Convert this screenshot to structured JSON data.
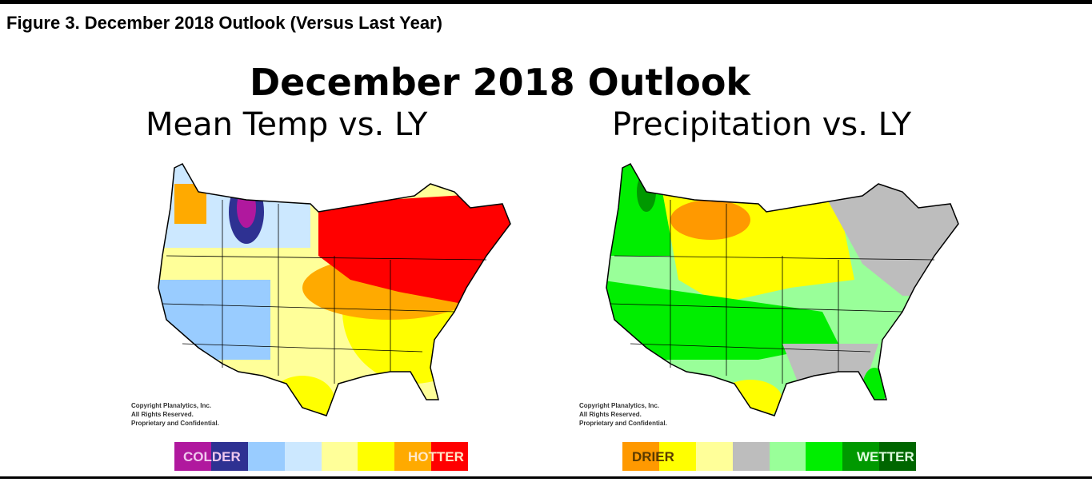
{
  "caption": "Figure 3. December 2018 Outlook (Versus Last Year)",
  "title": "December 2018 Outlook",
  "maps": [
    {
      "subtitle": "Mean Temp vs. LY",
      "legend_low": "COLDER",
      "legend_high": "HOTTER",
      "legend_colors": [
        "#b0189e",
        "#2e3192",
        "#99ccff",
        "#cce8ff",
        "#ffff99",
        "#ffff00",
        "#ffaa00",
        "#ff0000"
      ]
    },
    {
      "subtitle": "Precipitation vs. LY",
      "legend_low": "DRIER",
      "legend_high": "WETTER",
      "legend_colors": [
        "#ff9900",
        "#ffff00",
        "#ffff99",
        "#bdbdbd",
        "#99ff99",
        "#00ee00",
        "#009900",
        "#006600"
      ]
    }
  ],
  "copyright": [
    "Copyright Planalytics, Inc.",
    "All Rights Reserved.",
    "Proprietary and Confidential."
  ]
}
